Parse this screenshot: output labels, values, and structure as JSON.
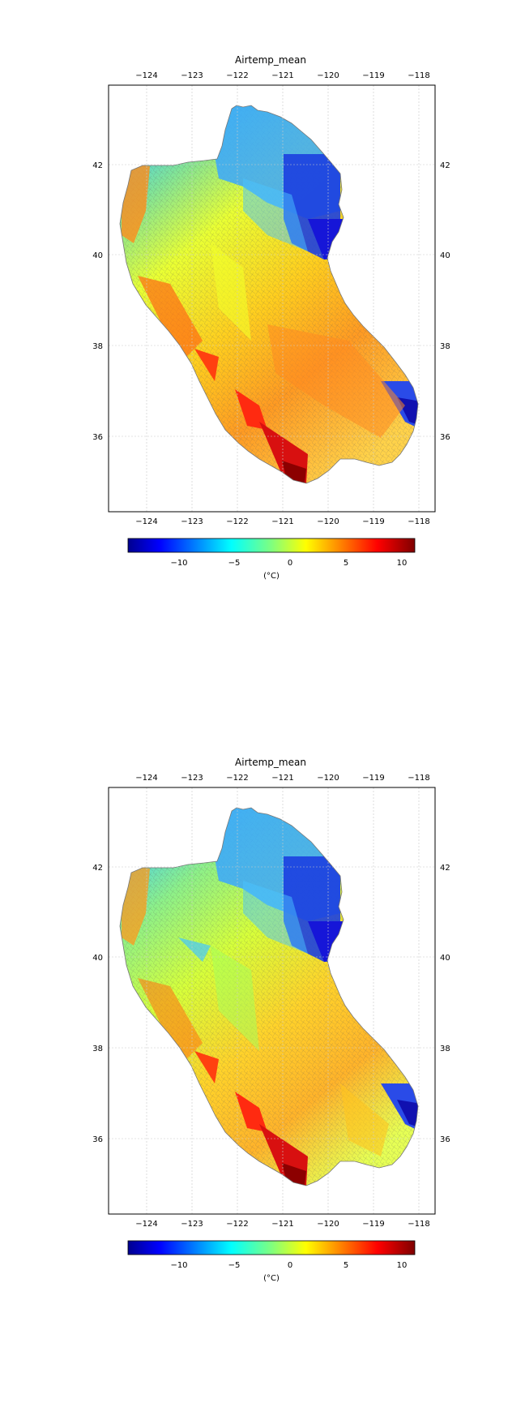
{
  "maps": [
    {
      "title": "Airtemp_mean",
      "lon_ticks": [
        "−124",
        "−123",
        "−122",
        "−121",
        "−120",
        "−119",
        "−118"
      ],
      "lat_ticks": [
        "42",
        "40",
        "38",
        "36"
      ],
      "colorbar": {
        "ticks": [
          "−10",
          "−5",
          "0",
          "5",
          "10"
        ],
        "unit_label": "(°C)",
        "colormap": "jet",
        "range": [
          -14.5,
          11
        ]
      }
    },
    {
      "title": "Airtemp_mean",
      "lon_ticks": [
        "−124",
        "−123",
        "−122",
        "−121",
        "−120",
        "−119",
        "−118"
      ],
      "lat_ticks": [
        "42",
        "40",
        "38",
        "36"
      ],
      "colorbar": {
        "ticks": [
          "−10",
          "−5",
          "0",
          "5",
          "10"
        ],
        "unit_label": "(°C)",
        "colormap": "jet",
        "range": [
          -14.5,
          11
        ]
      }
    }
  ]
}
